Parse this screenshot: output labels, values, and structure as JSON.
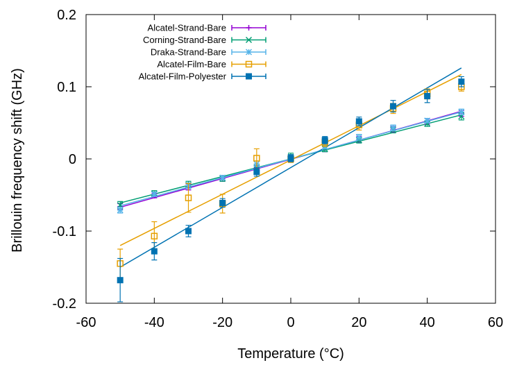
{
  "chart_data": {
    "type": "scatter",
    "title": "",
    "xlabel": "Temperature (°C)",
    "ylabel": "Brillouin frequency shift (GHz)",
    "xlim": [
      -60,
      60
    ],
    "ylim": [
      -0.2,
      0.2
    ],
    "xticks": [
      -60,
      -40,
      -20,
      0,
      20,
      40,
      60
    ],
    "xtick_labels": [
      "-60",
      "-40",
      "-20",
      "0",
      "20",
      "40",
      "60"
    ],
    "yticks": [
      -0.2,
      -0.1,
      0,
      0.1,
      0.2
    ],
    "ytick_labels": [
      "-0.2",
      "-0.1",
      "0",
      "0.1",
      "0.2"
    ],
    "grid": false,
    "legend_position": "top-left",
    "x": [
      -50,
      -40,
      -30,
      -20,
      -10,
      0,
      10,
      20,
      30,
      40,
      50
    ],
    "series": [
      {
        "name": "Alcatel-Strand-Bare",
        "color": "#9400d3",
        "marker": "plus",
        "values": [
          -0.066,
          -0.051,
          -0.039,
          -0.027,
          -0.013,
          0.0,
          0.014,
          0.027,
          0.041,
          0.052,
          0.063
        ],
        "errors": [
          0.004,
          0.003,
          0.004,
          0.004,
          0.004,
          0.004,
          0.004,
          0.004,
          0.004,
          0.004,
          0.004
        ],
        "fit": [
          [
            -50,
            -0.067
          ],
          [
            50,
            0.066
          ]
        ]
      },
      {
        "name": "Corning-Strand-Bare",
        "color": "#009e73",
        "marker": "x",
        "values": [
          -0.064,
          -0.048,
          -0.036,
          -0.027,
          -0.012,
          0.003,
          0.014,
          0.026,
          0.04,
          0.049,
          0.059
        ],
        "errors": [
          0.005,
          0.004,
          0.005,
          0.004,
          0.005,
          0.005,
          0.004,
          0.004,
          0.004,
          0.004,
          0.005
        ],
        "fit": [
          [
            -50,
            -0.061
          ],
          [
            50,
            0.061
          ]
        ]
      },
      {
        "name": "Draka-Strand-Bare",
        "color": "#56b4e9",
        "marker": "star",
        "values": [
          -0.071,
          -0.049,
          -0.037,
          -0.026,
          -0.007,
          0.001,
          0.017,
          0.03,
          0.043,
          0.053,
          0.065
        ],
        "errors": [
          0.004,
          0.003,
          0.004,
          0.003,
          0.004,
          0.004,
          0.003,
          0.004,
          0.004,
          0.003,
          0.004
        ],
        "fit": [
          [
            -50,
            -0.065
          ],
          [
            50,
            0.065
          ]
        ]
      },
      {
        "name": "Alcatel-Film-Bare",
        "color": "#e69f00",
        "marker": "open-square",
        "values": [
          -0.145,
          -0.107,
          -0.054,
          -0.062,
          0.001,
          0.0,
          0.023,
          0.047,
          0.07,
          0.09,
          0.1
        ],
        "errors": [
          0.02,
          0.02,
          0.02,
          0.013,
          0.013,
          0.005,
          0.006,
          0.007,
          0.007,
          0.007,
          0.006
        ],
        "fit": [
          [
            -50,
            -0.12
          ],
          [
            50,
            0.117
          ]
        ]
      },
      {
        "name": "Alcatel-Film-Polyester",
        "color": "#0072b2",
        "marker": "filled-square",
        "values": [
          -0.168,
          -0.128,
          -0.1,
          -0.061,
          -0.018,
          0.001,
          0.026,
          0.052,
          0.073,
          0.087,
          0.107
        ],
        "errors": [
          0.03,
          0.012,
          0.008,
          0.006,
          0.006,
          0.005,
          0.005,
          0.006,
          0.008,
          0.009,
          0.007
        ],
        "fit": [
          [
            -50,
            -0.15
          ],
          [
            50,
            0.126
          ]
        ]
      }
    ]
  }
}
